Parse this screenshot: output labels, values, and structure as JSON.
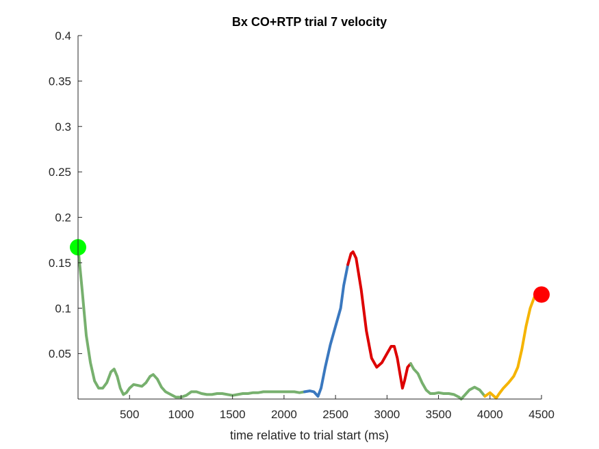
{
  "chart_data": {
    "type": "line",
    "title": "Bx  CO+RTP trial 7 velocity",
    "xlabel": "time relative to trial start (ms)",
    "ylabel": "",
    "xlim": [
      0,
      4500
    ],
    "ylim": [
      0,
      0.4
    ],
    "x_ticks": [
      500,
      1000,
      1500,
      2000,
      2500,
      3000,
      3500,
      4000,
      4500
    ],
    "y_ticks": [
      0.05,
      0.1,
      0.15,
      0.2,
      0.25,
      0.3,
      0.35,
      0.4
    ],
    "x_tick_labels": [
      "500",
      "1000",
      "1500",
      "2000",
      "2500",
      "3000",
      "3500",
      "4000",
      "4500"
    ],
    "y_tick_labels": [
      "0.05",
      "0.1",
      "0.15",
      "0.2",
      "0.25",
      "0.3",
      "0.35",
      "0.4"
    ],
    "grid": false,
    "segments": [
      {
        "color": "#77b06e",
        "points": [
          [
            0,
            0.167
          ],
          [
            40,
            0.12
          ],
          [
            80,
            0.07
          ],
          [
            120,
            0.04
          ],
          [
            160,
            0.02
          ],
          [
            200,
            0.012
          ],
          [
            240,
            0.012
          ],
          [
            280,
            0.018
          ],
          [
            320,
            0.03
          ],
          [
            350,
            0.033
          ],
          [
            380,
            0.025
          ],
          [
            410,
            0.012
          ],
          [
            440,
            0.005
          ],
          [
            470,
            0.007
          ],
          [
            500,
            0.012
          ],
          [
            540,
            0.016
          ],
          [
            580,
            0.015
          ],
          [
            620,
            0.014
          ],
          [
            660,
            0.018
          ],
          [
            700,
            0.025
          ],
          [
            730,
            0.027
          ],
          [
            770,
            0.022
          ],
          [
            810,
            0.013
          ],
          [
            850,
            0.008
          ],
          [
            900,
            0.005
          ],
          [
            950,
            0.002
          ],
          [
            1000,
            0.002
          ],
          [
            1050,
            0.004
          ],
          [
            1100,
            0.008
          ],
          [
            1150,
            0.008
          ],
          [
            1200,
            0.006
          ],
          [
            1250,
            0.005
          ],
          [
            1300,
            0.005
          ],
          [
            1350,
            0.006
          ],
          [
            1400,
            0.006
          ],
          [
            1450,
            0.005
          ],
          [
            1500,
            0.004
          ],
          [
            1550,
            0.005
          ],
          [
            1600,
            0.006
          ],
          [
            1650,
            0.006
          ],
          [
            1700,
            0.007
          ],
          [
            1750,
            0.007
          ],
          [
            1800,
            0.008
          ],
          [
            1850,
            0.008
          ],
          [
            1900,
            0.008
          ],
          [
            1950,
            0.008
          ],
          [
            2000,
            0.008
          ],
          [
            2050,
            0.008
          ],
          [
            2100,
            0.008
          ],
          [
            2150,
            0.007
          ],
          [
            2200,
            0.008
          ]
        ]
      },
      {
        "color": "#3a78bf",
        "points": [
          [
            2200,
            0.008
          ],
          [
            2250,
            0.009
          ],
          [
            2290,
            0.008
          ],
          [
            2330,
            0.003
          ],
          [
            2360,
            0.012
          ],
          [
            2400,
            0.035
          ],
          [
            2450,
            0.06
          ],
          [
            2500,
            0.08
          ],
          [
            2550,
            0.1
          ],
          [
            2580,
            0.125
          ],
          [
            2620,
            0.148
          ]
        ]
      },
      {
        "color": "#dd0000",
        "points": [
          [
            2620,
            0.148
          ],
          [
            2650,
            0.16
          ],
          [
            2670,
            0.162
          ],
          [
            2700,
            0.155
          ],
          [
            2750,
            0.12
          ],
          [
            2800,
            0.075
          ],
          [
            2850,
            0.045
          ],
          [
            2900,
            0.035
          ],
          [
            2950,
            0.04
          ],
          [
            3000,
            0.05
          ],
          [
            3040,
            0.058
          ],
          [
            3070,
            0.058
          ],
          [
            3100,
            0.045
          ],
          [
            3130,
            0.025
          ],
          [
            3150,
            0.012
          ],
          [
            3170,
            0.02
          ],
          [
            3200,
            0.035
          ],
          [
            3230,
            0.039
          ]
        ]
      },
      {
        "color": "#77b06e",
        "points": [
          [
            3230,
            0.039
          ],
          [
            3260,
            0.033
          ],
          [
            3300,
            0.028
          ],
          [
            3340,
            0.018
          ],
          [
            3380,
            0.01
          ],
          [
            3420,
            0.006
          ],
          [
            3460,
            0.006
          ],
          [
            3500,
            0.007
          ],
          [
            3550,
            0.006
          ],
          [
            3600,
            0.006
          ],
          [
            3650,
            0.005
          ],
          [
            3700,
            0.002
          ],
          [
            3720,
            0.0
          ],
          [
            3760,
            0.005
          ],
          [
            3800,
            0.01
          ],
          [
            3850,
            0.013
          ],
          [
            3900,
            0.01
          ],
          [
            3950,
            0.003
          ]
        ]
      },
      {
        "color": "#f5b400",
        "points": [
          [
            3950,
            0.003
          ],
          [
            4000,
            0.007
          ],
          [
            4030,
            0.004
          ],
          [
            4060,
            0.001
          ],
          [
            4090,
            0.006
          ],
          [
            4130,
            0.012
          ],
          [
            4180,
            0.018
          ],
          [
            4230,
            0.025
          ],
          [
            4270,
            0.035
          ],
          [
            4310,
            0.055
          ],
          [
            4350,
            0.08
          ],
          [
            4390,
            0.1
          ],
          [
            4430,
            0.112
          ],
          [
            4470,
            0.115
          ],
          [
            4500,
            0.115
          ]
        ]
      }
    ],
    "markers": [
      {
        "name": "start",
        "x": 0,
        "y": 0.167,
        "color": "#00ff00"
      },
      {
        "name": "end",
        "x": 4500,
        "y": 0.115,
        "color": "#ff0000"
      }
    ]
  }
}
